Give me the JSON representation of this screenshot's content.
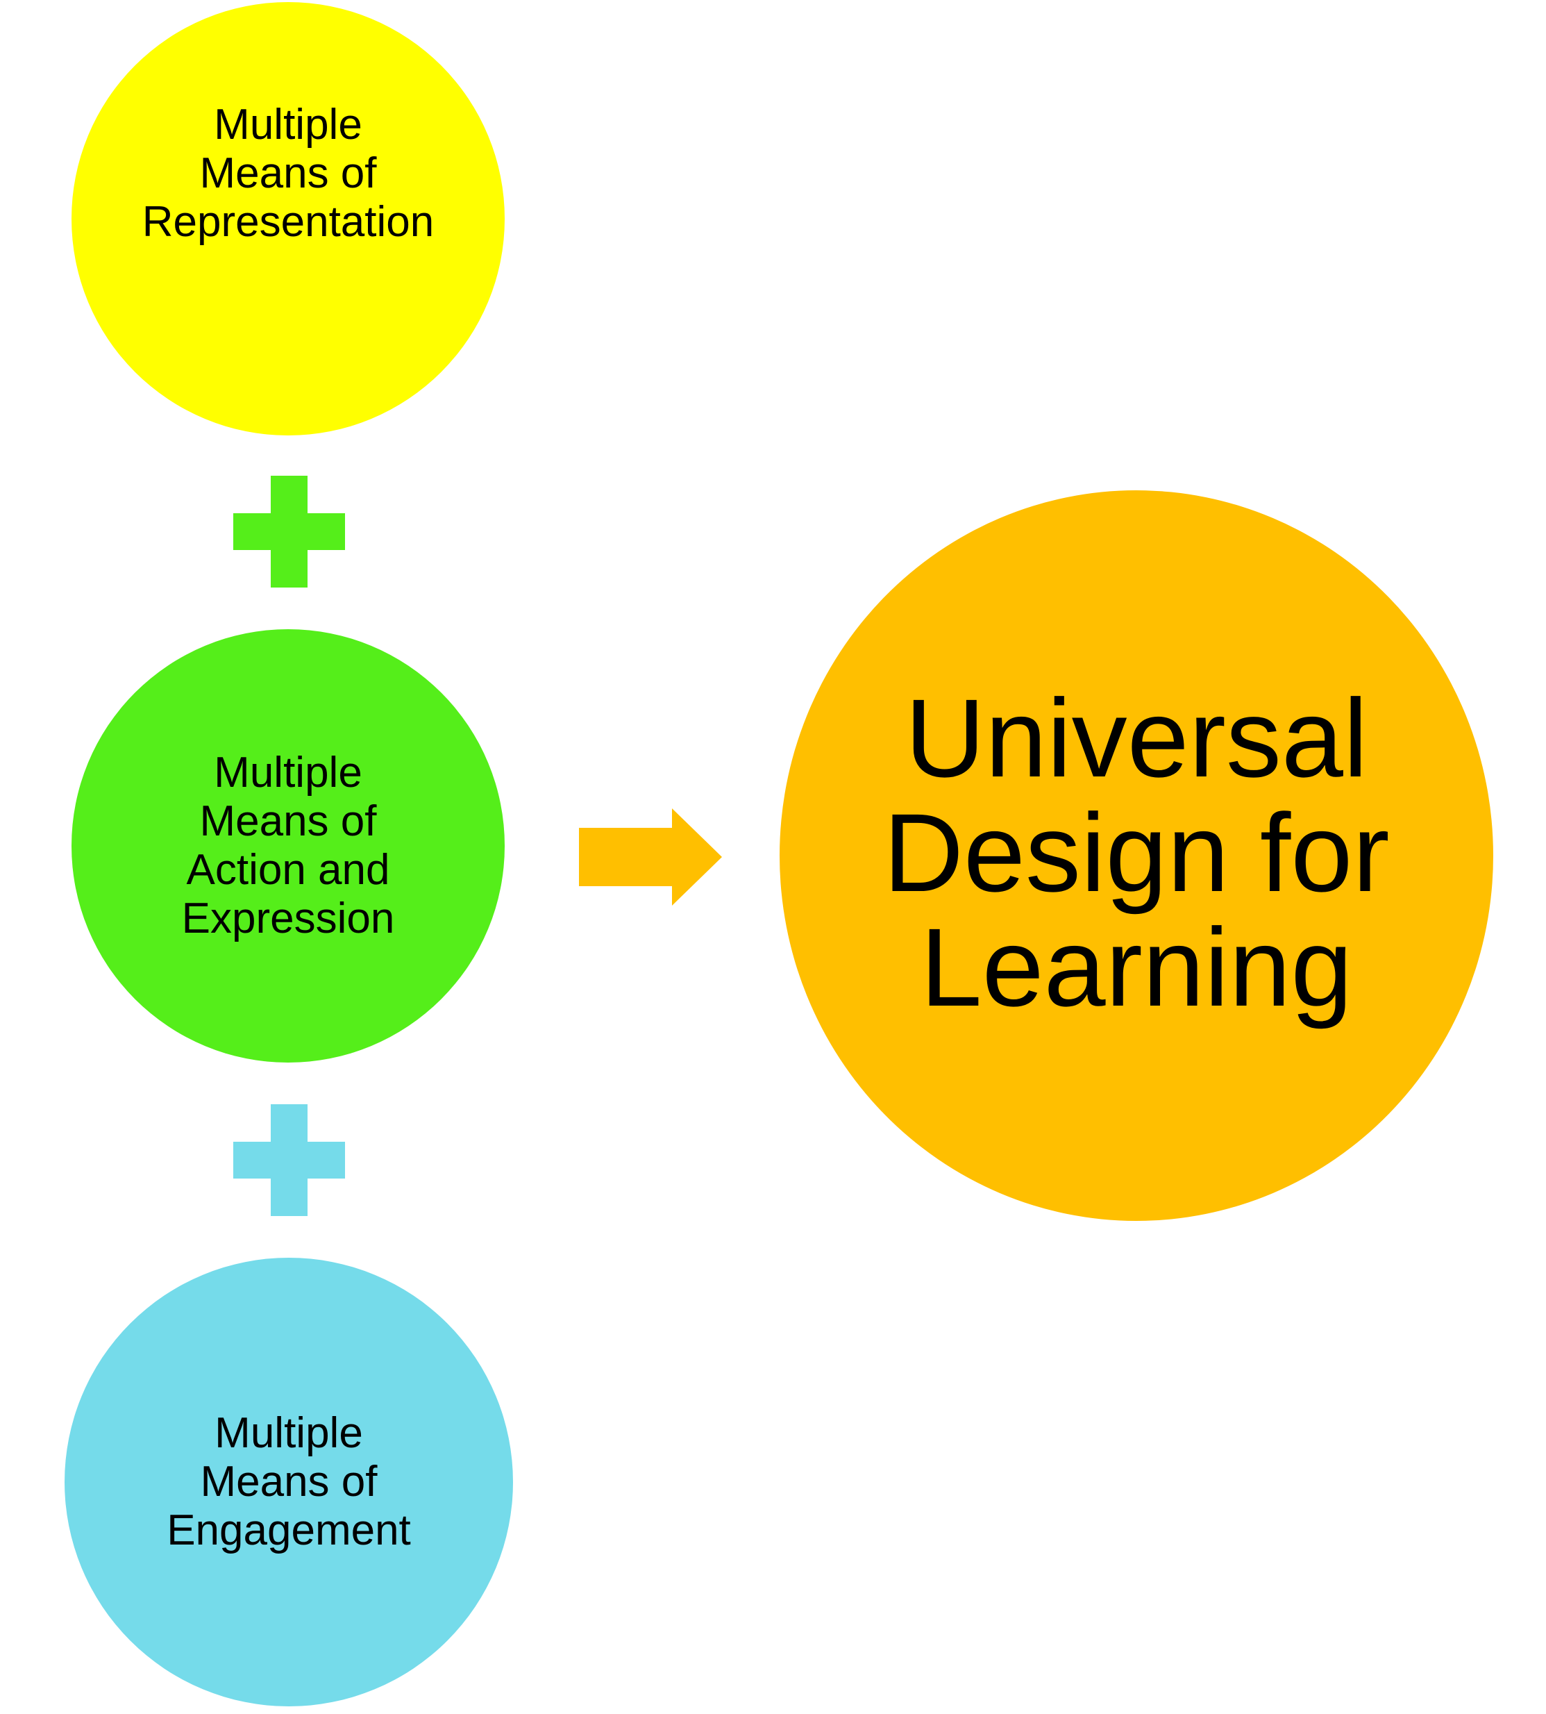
{
  "diagram": {
    "nodes": [
      {
        "id": "representation",
        "label": "Multiple\nMeans of\nRepresentation",
        "color": "#FFFF00"
      },
      {
        "id": "action",
        "label": "Multiple\nMeans of\nAction and\nExpression",
        "color": "#55EE1A"
      },
      {
        "id": "engagement",
        "label": "Multiple\nMeans of\nEngagement",
        "color": "#75DBEA"
      },
      {
        "id": "udl",
        "label": "Universal\nDesign for\nLearning",
        "color": "#FFBF00"
      }
    ],
    "connectors": {
      "plus_1_color": "#55EE1A",
      "plus_2_color": "#75DBEA",
      "arrow_color": "#FFBF00"
    }
  }
}
